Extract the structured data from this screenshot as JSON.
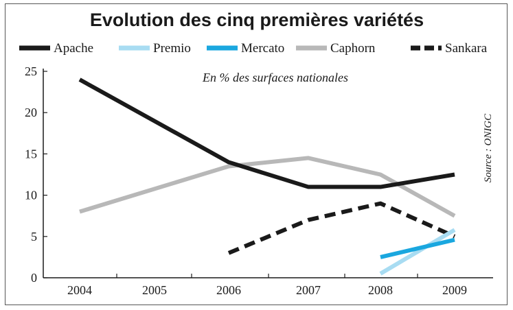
{
  "chart_data": {
    "type": "line",
    "title": "Evolution des cinq premières variétés",
    "subtitle": "En % des surfaces nationales",
    "source": "Source : ONIGC",
    "categories": [
      "2004",
      "2005",
      "2006",
      "2007",
      "2008",
      "2009"
    ],
    "ylim": [
      0,
      25
    ],
    "yticks": [
      0,
      5,
      10,
      15,
      20,
      25
    ],
    "legend_position": "top",
    "series": [
      {
        "name": "Apache",
        "color": "#1a1a1a",
        "dash": false,
        "values": [
          24,
          null,
          14,
          11,
          11,
          12.5
        ]
      },
      {
        "name": "Premio",
        "color": "#a8dcf2",
        "dash": false,
        "values": [
          null,
          null,
          null,
          null,
          0.5,
          5.8
        ]
      },
      {
        "name": "Mercato",
        "color": "#1aa7df",
        "dash": false,
        "values": [
          null,
          null,
          null,
          null,
          2.5,
          4.6
        ]
      },
      {
        "name": "Caphorn",
        "color": "#b8b8b8",
        "dash": false,
        "values": [
          8,
          null,
          13.5,
          14.5,
          12.5,
          7.5
        ]
      },
      {
        "name": "Sankara",
        "color": "#1a1a1a",
        "dash": true,
        "values": [
          null,
          null,
          3,
          7,
          9,
          5
        ]
      }
    ]
  }
}
